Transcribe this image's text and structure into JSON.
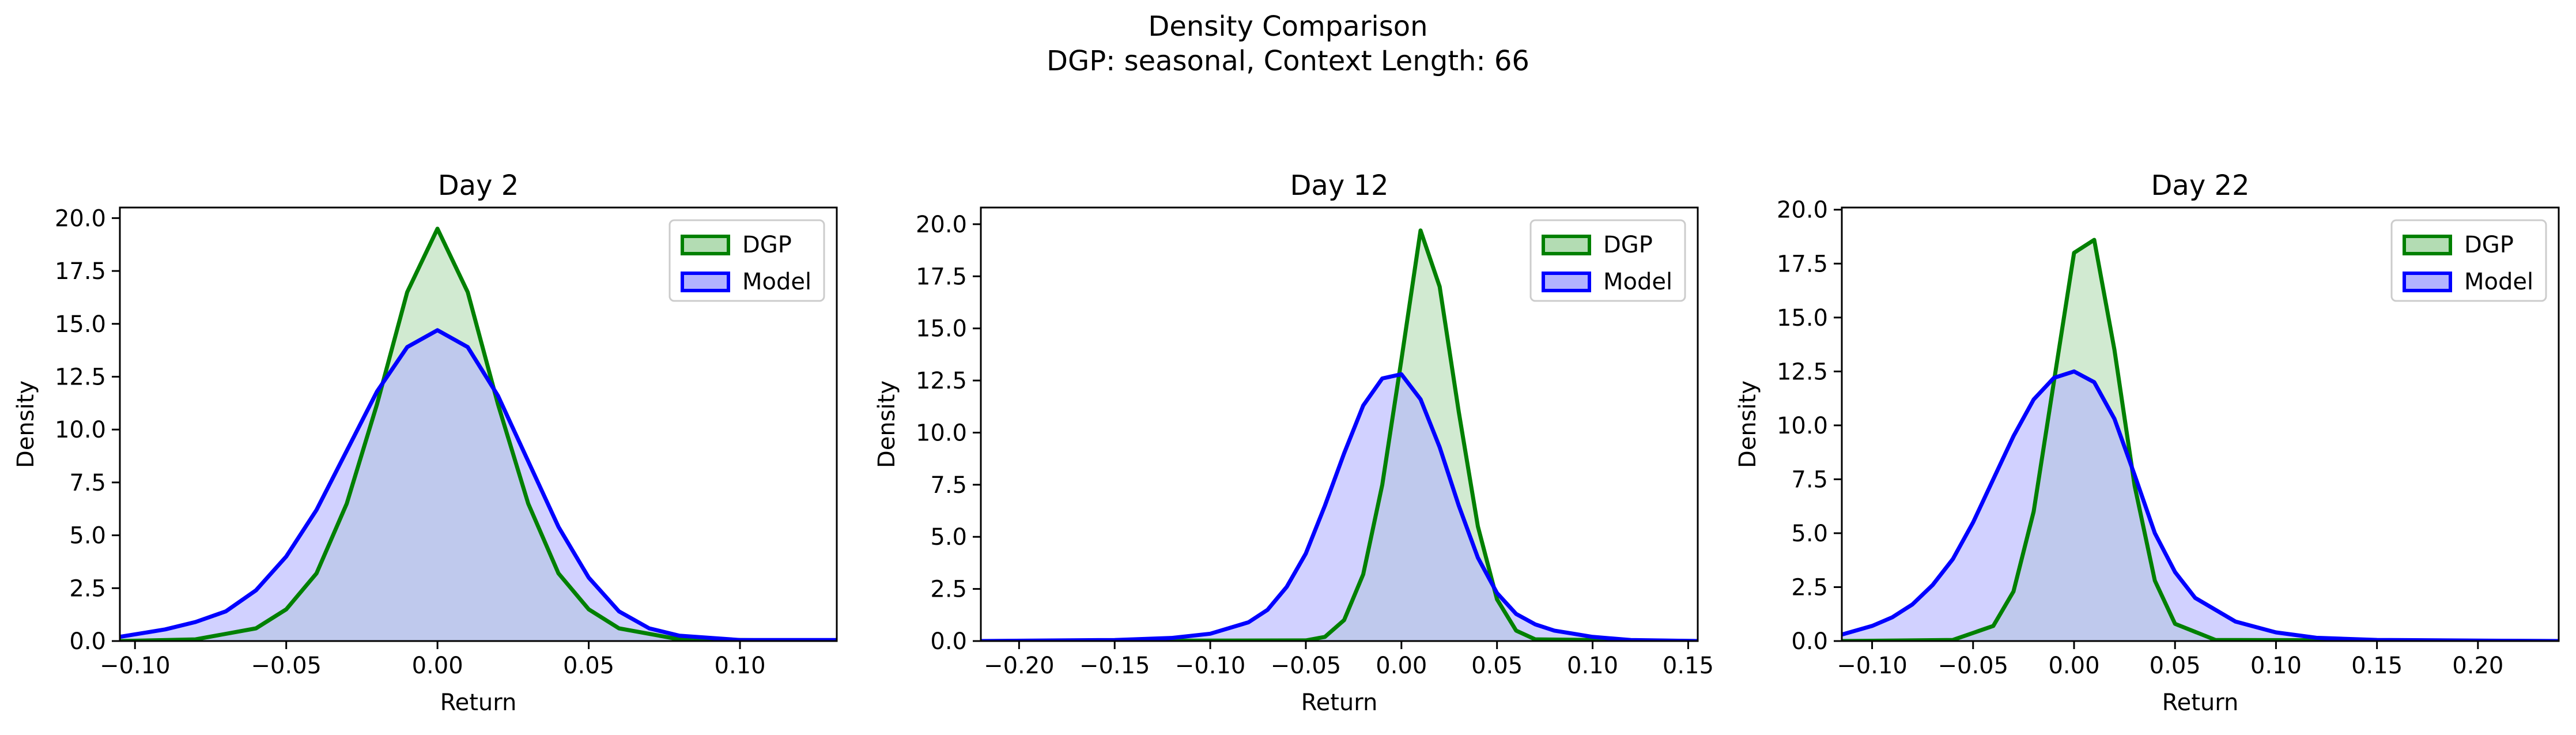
{
  "figure": {
    "suptitle_line1": "Density Comparison",
    "suptitle_line2": "DGP: seasonal, Context Length: 66"
  },
  "colors": {
    "dgp_line": "#008000",
    "dgp_fill": "#b3dcb3",
    "model_line": "#0000ff",
    "model_fill": "#b3b3ff",
    "overlap_fill": "#7f99c9"
  },
  "chart_data": [
    {
      "type": "area",
      "title": "Day 2",
      "xlabel": "Return",
      "ylabel": "Density",
      "xlim": [
        -0.105,
        0.132
      ],
      "ylim": [
        0,
        20.5
      ],
      "xticks": [
        -0.1,
        -0.05,
        0.0,
        0.05,
        0.1
      ],
      "xtick_labels": [
        "−0.10",
        "−0.05",
        "0.00",
        "0.05",
        "0.10"
      ],
      "yticks": [
        0,
        2.5,
        5,
        7.5,
        10,
        12.5,
        15,
        17.5,
        20
      ],
      "ytick_labels": [
        "0.0",
        "2.5",
        "5.0",
        "7.5",
        "10.0",
        "12.5",
        "15.0",
        "17.5",
        "20.0"
      ],
      "legend": {
        "position": "top-right",
        "entries": [
          "DGP",
          "Model"
        ]
      },
      "grid": false,
      "series": [
        {
          "name": "DGP",
          "x": [
            -0.105,
            -0.08,
            -0.06,
            -0.05,
            -0.04,
            -0.03,
            -0.02,
            -0.01,
            0.0,
            0.01,
            0.02,
            0.03,
            0.04,
            0.05,
            0.06,
            0.08,
            0.132
          ],
          "y": [
            0.0,
            0.08,
            0.6,
            1.5,
            3.2,
            6.5,
            11.2,
            16.5,
            19.5,
            16.5,
            11.2,
            6.5,
            3.2,
            1.5,
            0.6,
            0.08,
            0.0
          ]
        },
        {
          "name": "Model",
          "x": [
            -0.105,
            -0.09,
            -0.08,
            -0.07,
            -0.06,
            -0.05,
            -0.04,
            -0.03,
            -0.02,
            -0.01,
            0.0,
            0.01,
            0.02,
            0.03,
            0.04,
            0.05,
            0.06,
            0.07,
            0.08,
            0.1,
            0.132
          ],
          "y": [
            0.2,
            0.55,
            0.9,
            1.4,
            2.4,
            4.0,
            6.2,
            9.0,
            11.8,
            13.9,
            14.7,
            13.9,
            11.6,
            8.5,
            5.4,
            3.0,
            1.4,
            0.6,
            0.25,
            0.05,
            0.05
          ]
        }
      ]
    },
    {
      "type": "area",
      "title": "Day 12",
      "xlabel": "Return",
      "ylabel": "Density",
      "xlim": [
        -0.22,
        0.155
      ],
      "ylim": [
        0,
        20.8
      ],
      "xticks": [
        -0.2,
        -0.15,
        -0.1,
        -0.05,
        0.0,
        0.05,
        0.1,
        0.15
      ],
      "xtick_labels": [
        "−0.20",
        "−0.15",
        "−0.10",
        "−0.05",
        "0.00",
        "0.05",
        "0.10",
        "0.15"
      ],
      "yticks": [
        0,
        2.5,
        5,
        7.5,
        10,
        12.5,
        15,
        17.5,
        20
      ],
      "ytick_labels": [
        "0.0",
        "2.5",
        "5.0",
        "7.5",
        "10.0",
        "12.5",
        "15.0",
        "17.5",
        "20.0"
      ],
      "legend": {
        "position": "top-right",
        "entries": [
          "DGP",
          "Model"
        ]
      },
      "grid": false,
      "series": [
        {
          "name": "DGP",
          "x": [
            -0.22,
            -0.05,
            -0.04,
            -0.03,
            -0.02,
            -0.01,
            0.0,
            0.01,
            0.02,
            0.03,
            0.04,
            0.05,
            0.06,
            0.07,
            0.155
          ],
          "y": [
            0.0,
            0.03,
            0.2,
            1.0,
            3.2,
            7.5,
            13.5,
            19.7,
            17.0,
            11.0,
            5.5,
            2.0,
            0.5,
            0.08,
            0.0
          ]
        },
        {
          "name": "Model",
          "x": [
            -0.22,
            -0.15,
            -0.12,
            -0.1,
            -0.08,
            -0.07,
            -0.06,
            -0.05,
            -0.04,
            -0.03,
            -0.02,
            -0.01,
            0.0,
            0.01,
            0.02,
            0.03,
            0.04,
            0.05,
            0.06,
            0.07,
            0.08,
            0.09,
            0.1,
            0.12,
            0.155
          ],
          "y": [
            0.0,
            0.05,
            0.15,
            0.35,
            0.9,
            1.5,
            2.6,
            4.2,
            6.5,
            9.0,
            11.3,
            12.6,
            12.8,
            11.6,
            9.3,
            6.5,
            4.0,
            2.3,
            1.3,
            0.8,
            0.5,
            0.35,
            0.2,
            0.05,
            0.0
          ]
        }
      ]
    },
    {
      "type": "area",
      "title": "Day 22",
      "xlabel": "Return",
      "ylabel": "Density",
      "xlim": [
        -0.115,
        0.24
      ],
      "ylim": [
        0,
        20.1
      ],
      "xticks": [
        -0.1,
        -0.05,
        0.0,
        0.05,
        0.1,
        0.15,
        0.2
      ],
      "xtick_labels": [
        "−0.10",
        "−0.05",
        "0.00",
        "0.05",
        "0.10",
        "0.15",
        "0.20"
      ],
      "yticks": [
        0,
        2.5,
        5,
        7.5,
        10,
        12.5,
        15,
        17.5,
        20
      ],
      "ytick_labels": [
        "0.0",
        "2.5",
        "5.0",
        "7.5",
        "10.0",
        "12.5",
        "15.0",
        "17.5",
        "20.0"
      ],
      "legend": {
        "position": "top-right",
        "entries": [
          "DGP",
          "Model"
        ]
      },
      "grid": false,
      "series": [
        {
          "name": "DGP",
          "x": [
            -0.115,
            -0.06,
            -0.04,
            -0.03,
            -0.02,
            -0.01,
            0.0,
            0.01,
            0.02,
            0.03,
            0.04,
            0.05,
            0.07,
            0.24
          ],
          "y": [
            0.0,
            0.05,
            0.7,
            2.3,
            6.0,
            12.0,
            18.0,
            18.6,
            13.5,
            7.2,
            2.8,
            0.8,
            0.05,
            0.0
          ]
        },
        {
          "name": "Model",
          "x": [
            -0.115,
            -0.1,
            -0.09,
            -0.08,
            -0.07,
            -0.06,
            -0.05,
            -0.04,
            -0.03,
            -0.02,
            -0.01,
            0.0,
            0.01,
            0.02,
            0.03,
            0.04,
            0.05,
            0.06,
            0.08,
            0.1,
            0.12,
            0.15,
            0.2,
            0.24
          ],
          "y": [
            0.3,
            0.7,
            1.1,
            1.7,
            2.6,
            3.8,
            5.5,
            7.5,
            9.5,
            11.2,
            12.2,
            12.5,
            12.0,
            10.3,
            7.7,
            5.0,
            3.2,
            2.0,
            0.9,
            0.4,
            0.15,
            0.05,
            0.02,
            0.0
          ]
        }
      ]
    }
  ]
}
